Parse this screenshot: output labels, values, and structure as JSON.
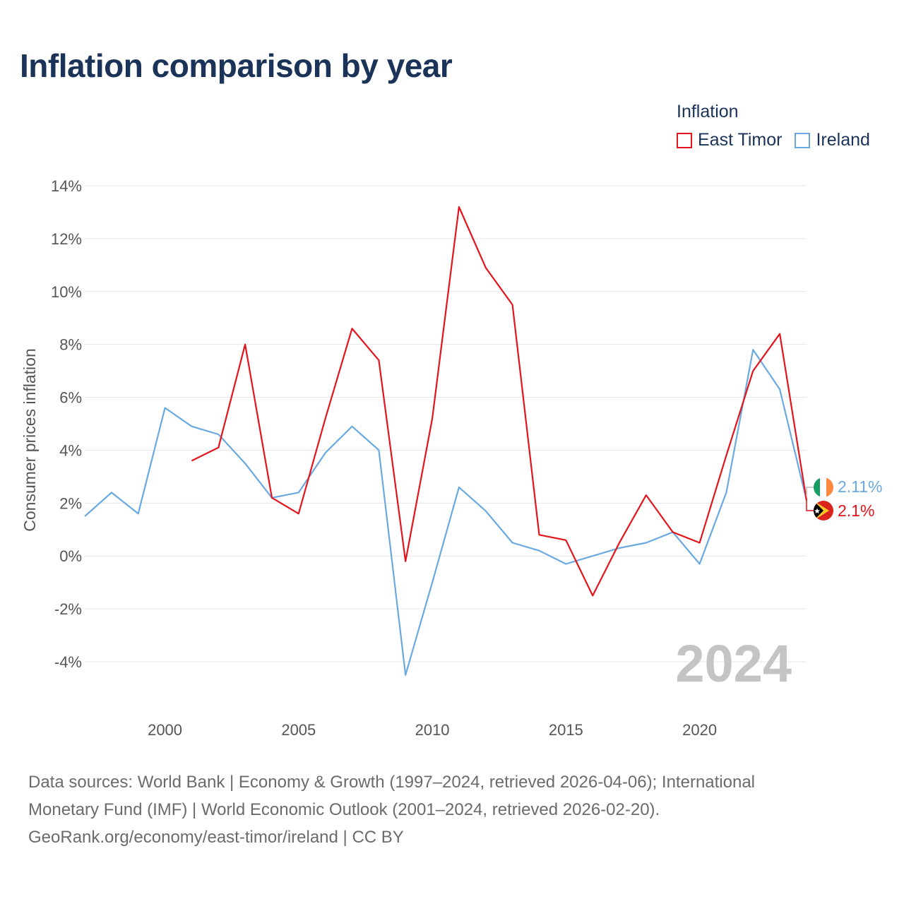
{
  "title": "Inflation comparison by year",
  "legend": {
    "title": "Inflation",
    "items": [
      {
        "label": "East Timor",
        "color": "#e3141b"
      },
      {
        "label": "Ireland",
        "color": "#6aa9e0"
      }
    ]
  },
  "footer": {
    "line1": "Data sources: World Bank | Economy & Growth (1997–2024, retrieved 2026-04-06); International",
    "line2": "Monetary Fund (IMF) | World Economic Outlook (2001–2024, retrieved 2026-02-20).",
    "line3": "GeoRank.org/economy/east-timor/ireland | CC BY"
  },
  "chart_data": {
    "type": "line",
    "title": "Inflation comparison by year",
    "xlabel": "",
    "ylabel": "Consumer prices inflation",
    "xlim": [
      1997,
      2024
    ],
    "ylim": [
      -4,
      14
    ],
    "x_ticks": [
      2000,
      2005,
      2010,
      2015,
      2020
    ],
    "x_tick_labels": [
      "2000",
      "2005",
      "2010",
      "2015",
      "2020"
    ],
    "y_ticks": [
      14,
      12,
      10,
      8,
      6,
      4,
      2,
      0,
      -2,
      -4
    ],
    "y_tick_labels": [
      "14%",
      "12%",
      "10%",
      "8%",
      "6%",
      "4%",
      "2%",
      "0%",
      "-2%",
      "-4%"
    ],
    "watermark_year": "2024",
    "series": [
      {
        "name": "East Timor",
        "color": "#e3141b",
        "end_label": "2.1%",
        "x": [
          2001,
          2002,
          2003,
          2004,
          2005,
          2006,
          2007,
          2008,
          2009,
          2010,
          2011,
          2012,
          2013,
          2014,
          2015,
          2016,
          2017,
          2018,
          2019,
          2020,
          2021,
          2022,
          2023,
          2024
        ],
        "values": [
          3.6,
          4.1,
          8.0,
          2.2,
          1.6,
          5.2,
          8.6,
          7.4,
          -0.2,
          5.2,
          13.2,
          10.9,
          9.5,
          0.8,
          0.6,
          -1.5,
          0.5,
          2.3,
          0.9,
          0.5,
          3.8,
          7.0,
          8.4,
          2.1
        ]
      },
      {
        "name": "Ireland",
        "color": "#6aa9e0",
        "end_label": "2.11%",
        "x": [
          1997,
          1998,
          1999,
          2000,
          2001,
          2002,
          2003,
          2004,
          2005,
          2006,
          2007,
          2008,
          2009,
          2010,
          2011,
          2012,
          2013,
          2014,
          2015,
          2016,
          2017,
          2018,
          2019,
          2020,
          2021,
          2022,
          2023,
          2024
        ],
        "values": [
          1.5,
          2.4,
          1.6,
          5.6,
          4.9,
          4.6,
          3.5,
          2.2,
          2.4,
          3.9,
          4.9,
          4.0,
          -4.5,
          -1.0,
          2.6,
          1.7,
          0.5,
          0.2,
          -0.3,
          0.0,
          0.3,
          0.5,
          0.9,
          -0.3,
          2.4,
          7.8,
          6.3,
          2.11
        ]
      }
    ]
  }
}
